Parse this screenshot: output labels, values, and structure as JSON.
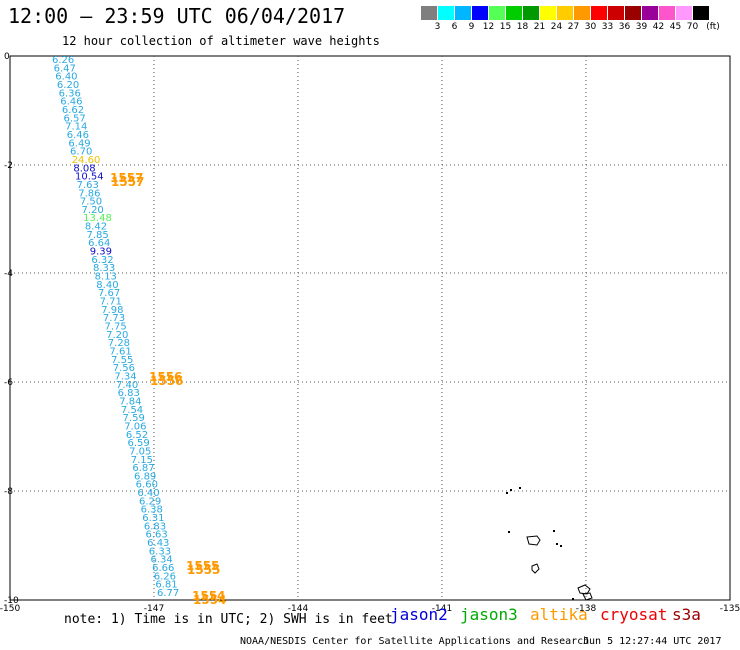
{
  "header": {
    "title": "12:00 – 23:59 UTC 06/04/2017",
    "subtitle": "12 hour collection of altimeter wave heights"
  },
  "legend": {
    "colors": [
      "#7f7f7f",
      "#00ffff",
      "#00b7ff",
      "#0000ff",
      "#55ff55",
      "#00cc00",
      "#009900",
      "#ffff00",
      "#ffcc00",
      "#ff9900",
      "#ff0000",
      "#cc0000",
      "#990000",
      "#990099",
      "#ff55cc",
      "#ff99ff",
      "#000000"
    ],
    "labels": [
      "3",
      "6",
      "9",
      "12",
      "15",
      "18",
      "21",
      "24",
      "27",
      "30",
      "33",
      "36",
      "39",
      "42",
      "45",
      "70"
    ],
    "unit": "(ft)"
  },
  "axes": {
    "x_ticks": [
      "-150",
      "-147",
      "-144",
      "-141",
      "-138",
      "-135"
    ],
    "y_ticks": [
      "0",
      "-2",
      "-4",
      "-6",
      "-8",
      "-10"
    ]
  },
  "track_readings": [
    {
      "v": "6.26",
      "c": "#29a9e0"
    },
    {
      "v": "6.47",
      "c": "#29a9e0"
    },
    {
      "v": "6.40",
      "c": "#29a9e0"
    },
    {
      "v": "6.20",
      "c": "#29a9e0"
    },
    {
      "v": "6.36",
      "c": "#29a9e0"
    },
    {
      "v": "6.46",
      "c": "#29a9e0"
    },
    {
      "v": "6.62",
      "c": "#29a9e0"
    },
    {
      "v": "6.57",
      "c": "#29a9e0"
    },
    {
      "v": "7.14",
      "c": "#29a9e0"
    },
    {
      "v": "6.46",
      "c": "#29a9e0"
    },
    {
      "v": "6.49",
      "c": "#29a9e0"
    },
    {
      "v": "6.70",
      "c": "#29a9e0"
    },
    {
      "v": "24.60",
      "c": "#f0c000"
    },
    {
      "v": "8.08",
      "c": "#1010cc"
    },
    {
      "v": "10.54",
      "c": "#1010cc"
    },
    {
      "v": "7.63",
      "c": "#29a9e0"
    },
    {
      "v": "7.86",
      "c": "#29a9e0"
    },
    {
      "v": "7.50",
      "c": "#29a9e0"
    },
    {
      "v": "7.20",
      "c": "#29a9e0"
    },
    {
      "v": "13.48",
      "c": "#55ee55"
    },
    {
      "v": "8.42",
      "c": "#29a9e0"
    },
    {
      "v": "7.85",
      "c": "#29a9e0"
    },
    {
      "v": "6.64",
      "c": "#29a9e0"
    },
    {
      "v": "9.39",
      "c": "#1010cc"
    },
    {
      "v": "6.32",
      "c": "#29a9e0"
    },
    {
      "v": "8.33",
      "c": "#29a9e0"
    },
    {
      "v": "8.13",
      "c": "#29a9e0"
    },
    {
      "v": "8.40",
      "c": "#29a9e0"
    },
    {
      "v": "7.67",
      "c": "#29a9e0"
    },
    {
      "v": "7.71",
      "c": "#29a9e0"
    },
    {
      "v": "7.98",
      "c": "#29a9e0"
    },
    {
      "v": "7.73",
      "c": "#29a9e0"
    },
    {
      "v": "7.75",
      "c": "#29a9e0"
    },
    {
      "v": "7.20",
      "c": "#29a9e0"
    },
    {
      "v": "7.28",
      "c": "#29a9e0"
    },
    {
      "v": "7.61",
      "c": "#29a9e0"
    },
    {
      "v": "7.55",
      "c": "#29a9e0"
    },
    {
      "v": "7.56",
      "c": "#29a9e0"
    },
    {
      "v": "7.34",
      "c": "#29a9e0"
    },
    {
      "v": "7.40",
      "c": "#29a9e0"
    },
    {
      "v": "6.83",
      "c": "#29a9e0"
    },
    {
      "v": "7.84",
      "c": "#29a9e0"
    },
    {
      "v": "7.54",
      "c": "#29a9e0"
    },
    {
      "v": "7.59",
      "c": "#29a9e0"
    },
    {
      "v": "7.06",
      "c": "#29a9e0"
    },
    {
      "v": "6.52",
      "c": "#29a9e0"
    },
    {
      "v": "6.59",
      "c": "#29a9e0"
    },
    {
      "v": "7.05",
      "c": "#29a9e0"
    },
    {
      "v": "7.15",
      "c": "#29a9e0"
    },
    {
      "v": "6.87",
      "c": "#29a9e0"
    },
    {
      "v": "6.89",
      "c": "#29a9e0"
    },
    {
      "v": "6.60",
      "c": "#29a9e0"
    },
    {
      "v": "6.40",
      "c": "#29a9e0"
    },
    {
      "v": "6.29",
      "c": "#29a9e0"
    },
    {
      "v": "6.38",
      "c": "#29a9e0"
    },
    {
      "v": "6.31",
      "c": "#29a9e0"
    },
    {
      "v": "6.83",
      "c": "#29a9e0"
    },
    {
      "v": "6.63",
      "c": "#29a9e0"
    },
    {
      "v": "6.43",
      "c": "#29a9e0"
    },
    {
      "v": "6.33",
      "c": "#29a9e0"
    },
    {
      "v": "6.34",
      "c": "#29a9e0"
    },
    {
      "v": "6.66",
      "c": "#29a9e0"
    },
    {
      "v": "6.26",
      "c": "#29a9e0"
    },
    {
      "v": "6.81",
      "c": "#29a9e0"
    },
    {
      "v": "6.77",
      "c": "#29a9e0"
    }
  ],
  "pass_labels": [
    "1557",
    "1556",
    "1555",
    "1554"
  ],
  "note": "note: 1) Time is in UTC; 2) SWH is in feet",
  "satellites": [
    {
      "name": "jason2",
      "color": "#0000dd"
    },
    {
      "name": "jason3",
      "color": "#00aa00"
    },
    {
      "name": "altika",
      "color": "#ff9900"
    },
    {
      "name": "cryosat",
      "color": "#ee0000"
    },
    {
      "name": "s3a",
      "color": "#990000"
    }
  ],
  "footer": "NOAA/NESDIS Center for Satellite Applications and Research",
  "timestamp": "Jun  5 12:27:44 UTC 2017"
}
